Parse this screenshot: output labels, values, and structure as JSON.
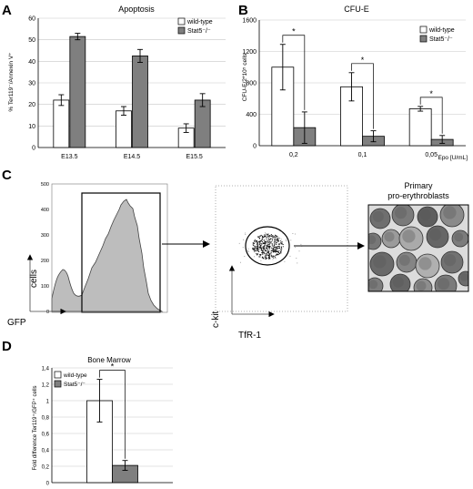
{
  "panels": {
    "A": {
      "letter": "A",
      "chart_data": {
        "type": "bar",
        "title": "Apoptosis",
        "ylabel": "% Ter119⁻/Annexin V⁺",
        "xlabel": "",
        "categories": [
          "E13.5",
          "E14.5",
          "E15.5"
        ],
        "series": [
          {
            "name": "wild-type",
            "values": [
              22,
              17,
              9
            ],
            "errors": [
              2.5,
              2,
              2
            ],
            "color": "#ffffff"
          },
          {
            "name": "Stat5⁻/⁻",
            "values": [
              51.5,
              42.5,
              22
            ],
            "errors": [
              1.5,
              3,
              3
            ],
            "color": "#7f7f7f"
          }
        ],
        "ylim": [
          0,
          60
        ],
        "yticks": [
          "0",
          "10",
          "20",
          "30",
          "40",
          "50",
          "60"
        ],
        "grid": true,
        "legend": "top-right"
      }
    },
    "B": {
      "letter": "B",
      "chart_data": {
        "type": "bar",
        "title": "CFU-E",
        "ylabel": "CFU-E/2*10⁵ cells",
        "xlabel": "Epo [U/mL]",
        "categories": [
          "0,2",
          "0,1",
          "0,05"
        ],
        "series": [
          {
            "name": "wild-type",
            "values": [
              1000,
              750,
              470
            ],
            "errors": [
              290,
              180,
              30
            ],
            "color": "#ffffff"
          },
          {
            "name": "Stat5⁻/⁻",
            "values": [
              230,
              120,
              80
            ],
            "errors": [
              200,
              70,
              50
            ],
            "color": "#7f7f7f"
          }
        ],
        "ylim": [
          0,
          1600
        ],
        "yticks": [
          "0",
          "400",
          "800",
          "1200",
          "1600"
        ],
        "grid": true,
        "legend": "top-right",
        "significance": [
          "*",
          "*",
          "*"
        ]
      }
    },
    "C": {
      "letter": "C",
      "histogram": {
        "ylabel": "cells",
        "xlabel": "GFP",
        "yticks": [
          "0",
          "100",
          "200",
          "300",
          "400",
          "500"
        ],
        "ylim": [
          0,
          500
        ]
      },
      "dotplot": {
        "ylabel": "c-kit",
        "xlabel": "TfR-1"
      },
      "result_label": [
        "Primary",
        "pro-erythroblasts"
      ]
    },
    "D": {
      "letter": "D",
      "chart_data": {
        "type": "bar",
        "title": "Bone Marrow",
        "ylabel": "Fold difference Ter119⁺/GFP⁺ cells",
        "xlabel": "",
        "categories": [
          ""
        ],
        "series": [
          {
            "name": "wild-type",
            "values": [
              1.0
            ],
            "errors": [
              0.26
            ],
            "color": "#ffffff"
          },
          {
            "name": "Stat5⁻/⁻",
            "values": [
              0.21
            ],
            "errors": [
              0.06
            ],
            "color": "#7f7f7f"
          }
        ],
        "ylim": [
          0,
          1.4
        ],
        "yticks": [
          "0",
          "0,2",
          "0,4",
          "0,6",
          "0,8",
          "1",
          "1,2",
          "1,4"
        ],
        "grid": true,
        "legend": "top-left",
        "significance": [
          "*"
        ]
      }
    }
  }
}
